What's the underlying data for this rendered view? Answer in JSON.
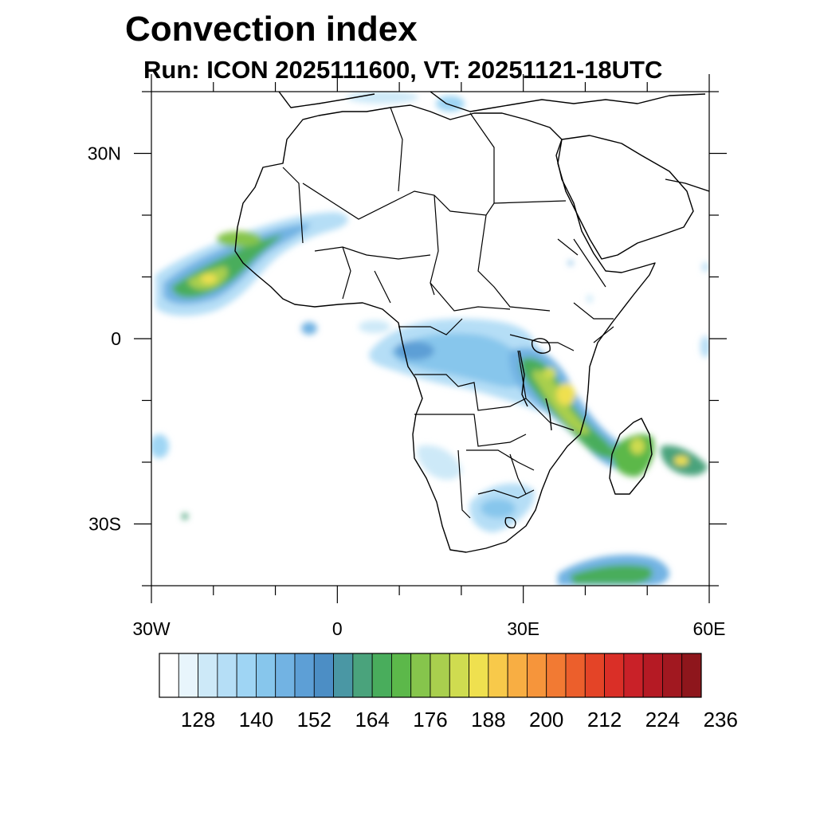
{
  "title": "Convection index",
  "subtitle": "Run: ICON 2025111600,  VT: 20251121-18UTC",
  "axes": {
    "x_ticks": [
      {
        "label": "30W",
        "lon": -30
      },
      {
        "label": "0",
        "lon": 0
      },
      {
        "label": "30E",
        "lon": 30
      },
      {
        "label": "60E",
        "lon": 60
      }
    ],
    "y_ticks": [
      {
        "label": "30N",
        "lat": 30
      },
      {
        "label": "0",
        "lat": 0
      },
      {
        "label": "30S",
        "lat": -30
      }
    ],
    "lon_range": [
      -30,
      60
    ],
    "lat_range": [
      -40,
      40
    ]
  },
  "colorbar": {
    "colors": [
      "#ffffff",
      "#e8f5fc",
      "#cde9f8",
      "#b5def6",
      "#9fd5f4",
      "#87c6ec",
      "#72b3e3",
      "#5d9fd6",
      "#4c8ec5",
      "#4a97a4",
      "#4aa37c",
      "#49ad5c",
      "#5cb84a",
      "#86c54c",
      "#a9cf4e",
      "#cfdc50",
      "#efe04f",
      "#f8c94a",
      "#f8ae43",
      "#f6953b",
      "#f27a33",
      "#ec5f2c",
      "#e44427",
      "#da2f27",
      "#c92128",
      "#b51a24",
      "#a11820",
      "#8e161c"
    ],
    "labels": [
      "128",
      "140",
      "152",
      "164",
      "176",
      "188",
      "200",
      "212",
      "224",
      "236"
    ]
  },
  "colors": {
    "text": "#000000",
    "coast": "#000000"
  }
}
